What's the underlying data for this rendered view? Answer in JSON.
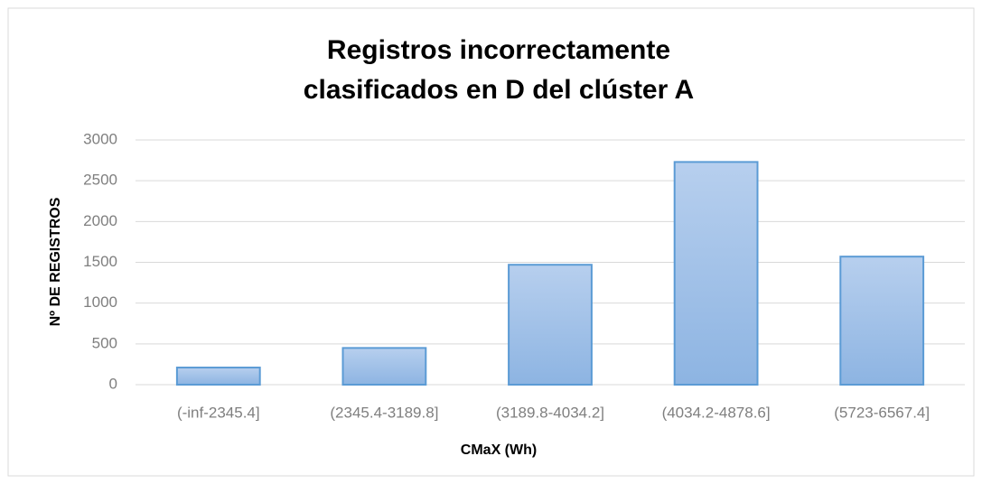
{
  "chart_data": {
    "type": "bar",
    "title": [
      "Registros incorrectamente",
      "clasificados  en D del clúster A"
    ],
    "x_label": "CMaX (Wh)",
    "y_label": "Nº DE REGISTROS",
    "categories": [
      "(-inf-2345.4]",
      "(2345.4-3189.8]",
      "(3189.8-4034.2]",
      "(4034.2-4878.6]",
      "(5723-6567.4]"
    ],
    "values": [
      210,
      450,
      1470,
      2730,
      1570
    ],
    "color": "#8db4e2",
    "ylim": [
      0,
      3000
    ],
    "yticks": [
      0,
      500,
      1000,
      1500,
      2000,
      2500,
      3000
    ],
    "grid": true
  }
}
